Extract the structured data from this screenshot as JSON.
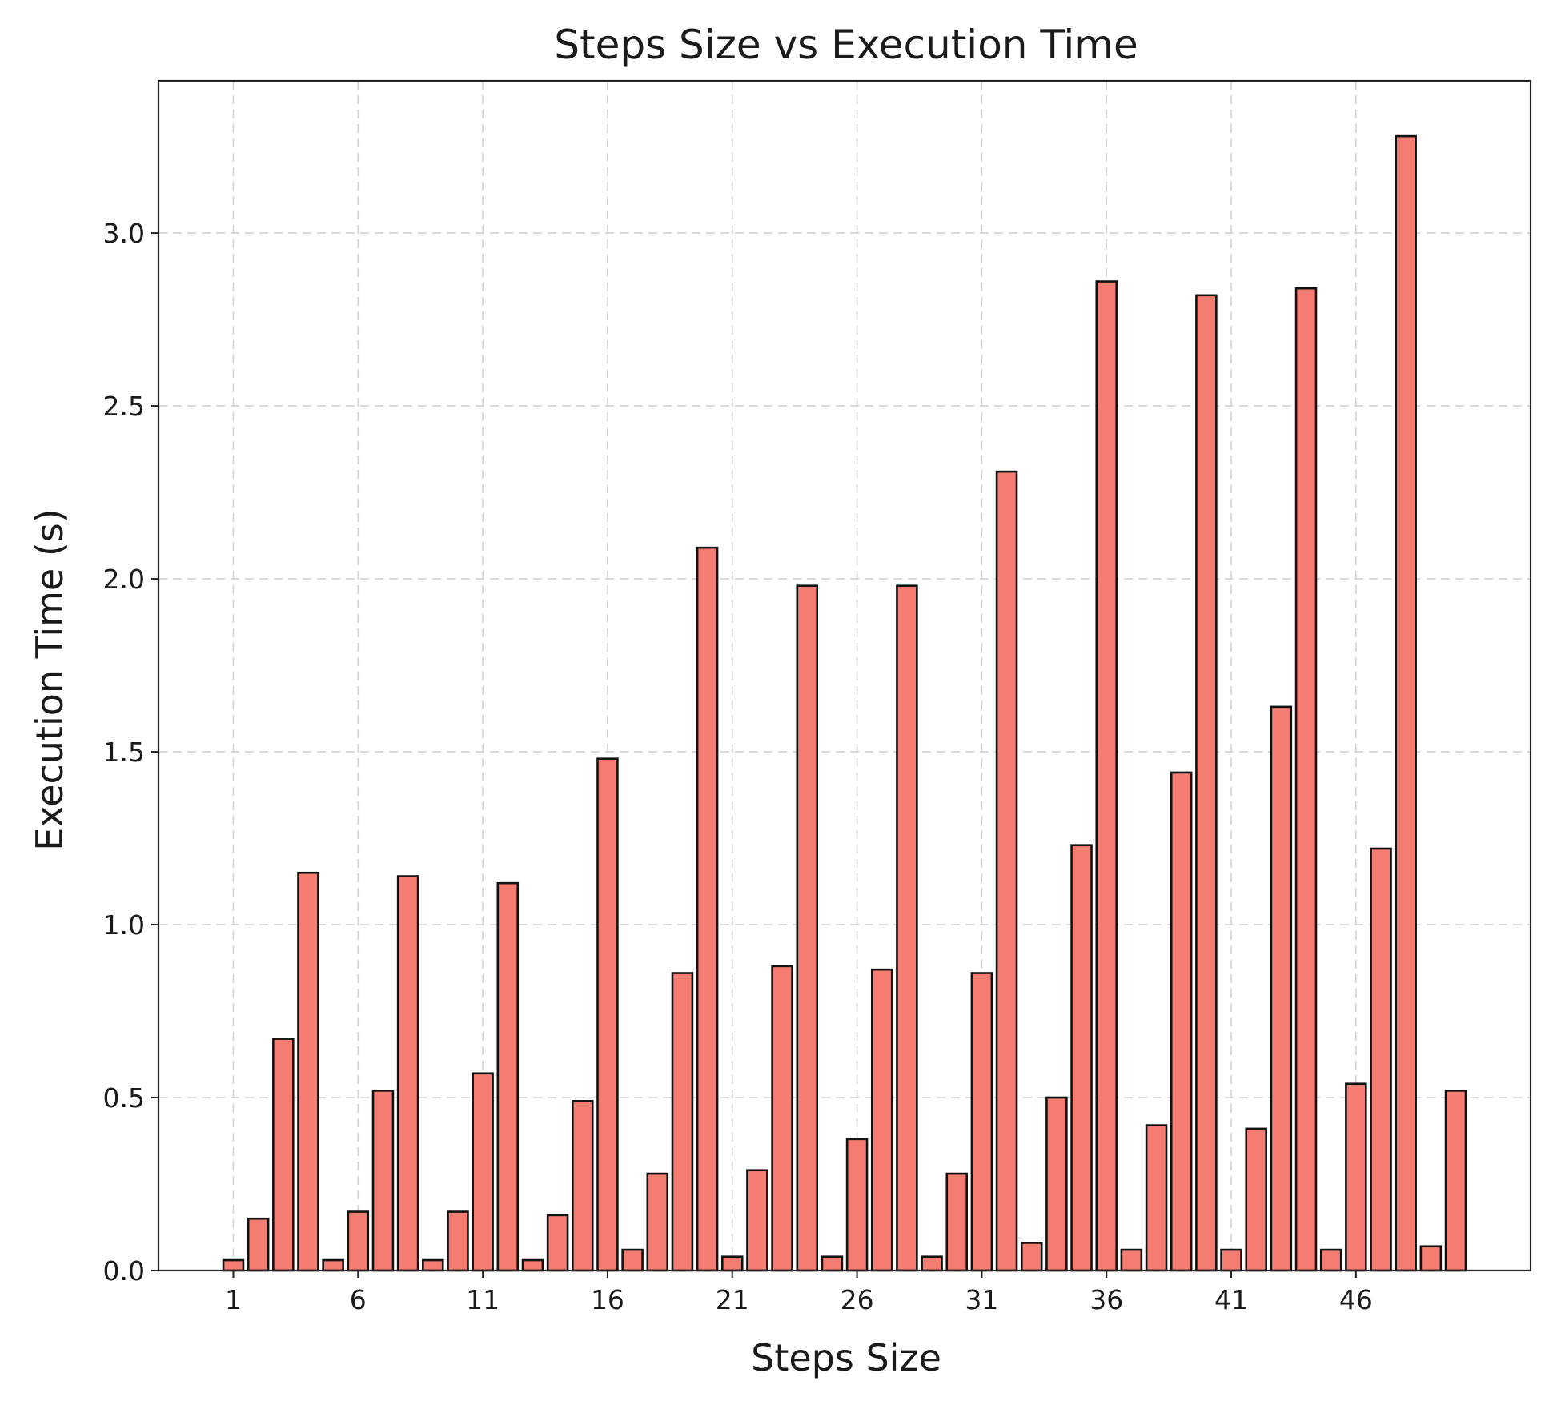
{
  "chart_data": {
    "type": "bar",
    "title": "Steps Size vs Execution Time",
    "xlabel": "Steps Size",
    "ylabel": "Execution Time (s)",
    "x": [
      1,
      2,
      3,
      4,
      5,
      6,
      7,
      8,
      9,
      10,
      11,
      12,
      13,
      14,
      15,
      16,
      17,
      18,
      19,
      20,
      21,
      22,
      23,
      24,
      25,
      26,
      27,
      28,
      29,
      30,
      31,
      32,
      33,
      34,
      35,
      36,
      37,
      38,
      39,
      40,
      41,
      42,
      43,
      44,
      45,
      46,
      47,
      48,
      49,
      50
    ],
    "values": [
      0.03,
      0.15,
      0.67,
      1.15,
      0.03,
      0.17,
      0.52,
      1.14,
      0.03,
      0.17,
      0.57,
      1.12,
      0.03,
      0.16,
      0.49,
      1.48,
      0.06,
      0.28,
      0.86,
      2.09,
      0.04,
      0.29,
      0.88,
      1.98,
      0.04,
      0.38,
      0.87,
      1.98,
      0.04,
      0.28,
      0.86,
      2.31,
      0.08,
      0.5,
      1.23,
      2.86,
      0.06,
      0.42,
      1.44,
      2.82,
      0.06,
      0.41,
      1.63,
      2.84,
      0.06,
      0.54,
      1.22,
      3.28,
      0.07,
      0.52
    ],
    "xticks": [
      1,
      6,
      11,
      16,
      21,
      26,
      31,
      36,
      41,
      46
    ],
    "yticks": [
      0.0,
      0.5,
      1.0,
      1.5,
      2.0,
      2.5,
      3.0
    ],
    "xlim": [
      -2,
      53
    ],
    "ylim": [
      0,
      3.44
    ],
    "grid": true,
    "bar_color": "#f47c70",
    "edge_color": "#111111"
  }
}
